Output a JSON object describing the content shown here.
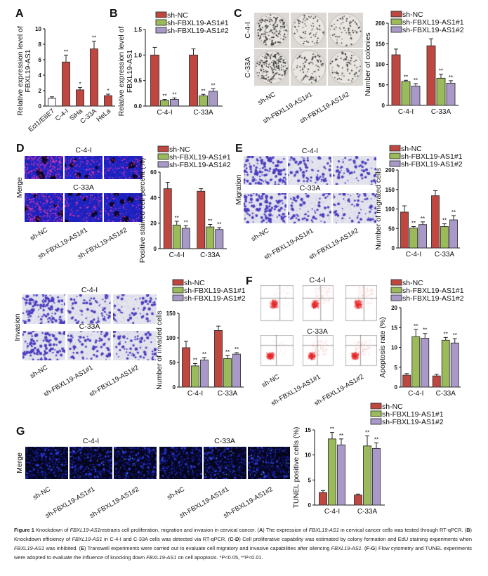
{
  "panels": {
    "letters": [
      "A",
      "B",
      "C",
      "D",
      "E",
      "F",
      "G"
    ],
    "groups": [
      "sh-NC",
      "sh-FBXL19-AS1#1",
      "sh-FBXL19-AS1#2"
    ],
    "cell_lines": [
      "C-4-I",
      "C-33A"
    ],
    "merge": "Merge",
    "migration": "Migration",
    "invasion": "Invasion"
  },
  "colors": {
    "sh-NC": "#c0473f",
    "sh-FBXL19-AS1#1": "#9bbb5a",
    "sh-FBXL19-AS1#2": "#a899c8"
  },
  "chart_data": [
    {
      "id": "A",
      "type": "bar",
      "categories": [
        "Ect1/E6E7",
        "C-4-I",
        "SiHa",
        "C-33A",
        "HeLa"
      ],
      "values": [
        1.0,
        5.7,
        2.1,
        7.4,
        1.35
      ],
      "errors": [
        0.2,
        0.9,
        0.3,
        1.0,
        0.2
      ],
      "significance": [
        "",
        "**",
        "*",
        "**",
        "*"
      ],
      "bar_colors": [
        "#ffffff",
        "#c0473f",
        "#c0473f",
        "#c0473f",
        "#c0473f"
      ],
      "ylabel": [
        "Relative expression level of",
        "FBXL19-AS1"
      ],
      "ylim": [
        0,
        10
      ],
      "yticks": [
        "0",
        "2",
        "4",
        "6",
        "8",
        "10"
      ],
      "grid": false
    },
    {
      "id": "B",
      "type": "bar",
      "categories": [
        "C-4-I",
        "C-33A"
      ],
      "series": [
        {
          "name": "sh-NC",
          "color": "#c0473f",
          "values": [
            1.0,
            1.0
          ],
          "errors": [
            0.15,
            0.12
          ],
          "significance": [
            "",
            ""
          ]
        },
        {
          "name": "sh-FBXL19-AS1#1",
          "color": "#9bbb5a",
          "values": [
            0.11,
            0.2
          ],
          "errors": [
            0.02,
            0.03
          ],
          "significance": [
            "**",
            "**"
          ]
        },
        {
          "name": "sh-FBXL19-AS1#2",
          "color": "#a899c8",
          "values": [
            0.13,
            0.29
          ],
          "errors": [
            0.03,
            0.05
          ],
          "significance": [
            "**",
            "**"
          ]
        }
      ],
      "ylabel": [
        "Relative expression level of",
        "FBXL19-AS1"
      ],
      "ylim": [
        0,
        1.5
      ],
      "yticks": [
        "0.0",
        "0.5",
        "1.0",
        "1.5"
      ],
      "legend": "top",
      "grid": false
    },
    {
      "id": "C",
      "type": "bar",
      "categories": [
        "C-4-I",
        "C-33A"
      ],
      "series": [
        {
          "name": "sh-NC",
          "color": "#c0473f",
          "values": [
            123,
            145
          ],
          "errors": [
            14,
            17
          ],
          "significance": [
            "",
            ""
          ]
        },
        {
          "name": "sh-FBXL19-AS1#1",
          "color": "#9bbb5a",
          "values": [
            58,
            66
          ],
          "errors": [
            3,
            10
          ],
          "significance": [
            "**",
            "**"
          ]
        },
        {
          "name": "sh-FBXL19-AS1#2",
          "color": "#a899c8",
          "values": [
            47,
            54
          ],
          "errors": [
            6,
            6
          ],
          "significance": [
            "**",
            "**"
          ]
        }
      ],
      "ylabel": [
        "Number of colonies"
      ],
      "ylim": [
        0,
        200
      ],
      "yticks": [
        "0",
        "50",
        "100",
        "150",
        "200"
      ],
      "legend": "top",
      "grid": false
    },
    {
      "id": "D",
      "type": "bar",
      "categories": [
        "C-4-I",
        "C-33A"
      ],
      "series": [
        {
          "name": "sh-NC",
          "color": "#c0473f",
          "values": [
            47,
            45
          ],
          "errors": [
            5,
            2
          ],
          "significance": [
            "",
            ""
          ]
        },
        {
          "name": "sh-FBXL19-AS1#1",
          "color": "#9bbb5a",
          "values": [
            18.5,
            17
          ],
          "errors": [
            3,
            2
          ],
          "significance": [
            "**",
            "**"
          ]
        },
        {
          "name": "sh-FBXL19-AS1#2",
          "color": "#a899c8",
          "values": [
            16,
            15
          ],
          "errors": [
            2,
            1.5
          ],
          "significance": [
            "**",
            "**"
          ]
        }
      ],
      "ylabel": [
        "Positive stained cell percent (%)"
      ],
      "ylim": [
        0,
        60
      ],
      "yticks": [
        "0",
        "20",
        "40",
        "60"
      ],
      "legend": "top",
      "grid": false
    },
    {
      "id": "E",
      "type": "bar",
      "categories": [
        "C-4-I",
        "C-33A"
      ],
      "series": [
        {
          "name": "sh-NC",
          "color": "#c0473f",
          "values": [
            92,
            134
          ],
          "errors": [
            16,
            13
          ],
          "significance": [
            "",
            ""
          ]
        },
        {
          "name": "sh-FBXL19-AS1#1",
          "color": "#9bbb5a",
          "values": [
            51,
            55
          ],
          "errors": [
            4,
            7
          ],
          "significance": [
            "**",
            "**"
          ]
        },
        {
          "name": "sh-FBXL19-AS1#2",
          "color": "#a899c8",
          "values": [
            60,
            72
          ],
          "errors": [
            7,
            11
          ],
          "significance": [
            "**",
            "**"
          ]
        }
      ],
      "ylabel": [
        "Number of migrated cells"
      ],
      "ylim": [
        0,
        200
      ],
      "yticks": [
        "0",
        "50",
        "100",
        "150",
        "200"
      ],
      "legend": "top",
      "grid": false
    },
    {
      "id": "Inv",
      "type": "bar",
      "categories": [
        "C-4-I",
        "C-33A"
      ],
      "series": [
        {
          "name": "sh-NC",
          "color": "#c0473f",
          "values": [
            80,
            115
          ],
          "errors": [
            13,
            9
          ],
          "significance": [
            "",
            ""
          ]
        },
        {
          "name": "sh-FBXL19-AS1#1",
          "color": "#9bbb5a",
          "values": [
            43,
            58
          ],
          "errors": [
            5,
            6
          ],
          "significance": [
            "**",
            "**"
          ]
        },
        {
          "name": "sh-FBXL19-AS1#2",
          "color": "#a899c8",
          "values": [
            55,
            67
          ],
          "errors": [
            5,
            3
          ],
          "significance": [
            "**",
            "**"
          ]
        }
      ],
      "ylabel": [
        "Number of invaded cells"
      ],
      "ylim": [
        0,
        150
      ],
      "yticks": [
        "0",
        "50",
        "100",
        "150"
      ],
      "legend": "top",
      "grid": false
    },
    {
      "id": "F",
      "type": "bar",
      "categories": [
        "C-4-I",
        "C-33A"
      ],
      "series": [
        {
          "name": "sh-NC",
          "color": "#c0473f",
          "values": [
            3.0,
            2.8
          ],
          "errors": [
            0.4,
            0.4
          ],
          "significance": [
            "",
            ""
          ]
        },
        {
          "name": "sh-FBXL19-AS1#1",
          "color": "#9bbb5a",
          "values": [
            12.7,
            11.8
          ],
          "errors": [
            1.8,
            0.7
          ],
          "significance": [
            "**",
            "**"
          ]
        },
        {
          "name": "sh-FBXL19-AS1#2",
          "color": "#a899c8",
          "values": [
            12.3,
            11.1
          ],
          "errors": [
            1.2,
            1.1
          ],
          "significance": [
            "**",
            "**"
          ]
        }
      ],
      "ylabel": [
        "Apoptosis rate (%)"
      ],
      "ylim": [
        0,
        20
      ],
      "yticks": [
        "0",
        "5",
        "10",
        "15",
        "20"
      ],
      "legend": "top",
      "grid": false
    },
    {
      "id": "G",
      "type": "bar",
      "categories": [
        "C-4-I",
        "C-33A"
      ],
      "series": [
        {
          "name": "sh-NC",
          "color": "#c0473f",
          "values": [
            2.5,
            2.0
          ],
          "errors": [
            0.4,
            0.2
          ],
          "significance": [
            "",
            ""
          ]
        },
        {
          "name": "sh-FBXL19-AS1#1",
          "color": "#9bbb5a",
          "values": [
            13.2,
            11.8
          ],
          "errors": [
            1.3,
            2.0
          ],
          "significance": [
            "**",
            "**"
          ]
        },
        {
          "name": "sh-FBXL19-AS1#2",
          "color": "#a899c8",
          "values": [
            12.0,
            11.3
          ],
          "errors": [
            1.2,
            1.1
          ],
          "significance": [
            "**",
            "**"
          ]
        }
      ],
      "ylabel": [
        "TUNEL positive cells (%)"
      ],
      "ylim": [
        0,
        15
      ],
      "yticks": [
        "0",
        "5",
        "10",
        "15"
      ],
      "legend": "top",
      "grid": false
    }
  ],
  "caption": [
    {
      "t": "Figure 1",
      "s": "b"
    },
    {
      "t": " Knockdown of ",
      "s": ""
    },
    {
      "t": "FBXL19-AS1",
      "s": "i"
    },
    {
      "t": "restrains cell proliferation, migration and invasion in cervical cancer. (",
      "s": ""
    },
    {
      "t": "A",
      "s": "b"
    },
    {
      "t": ") The expression of ",
      "s": ""
    },
    {
      "t": "FBXL19-AS1",
      "s": "i"
    },
    {
      "t": " in cervical cancer cells was tested through RT-qPCR. (",
      "s": ""
    },
    {
      "t": "B",
      "s": "b"
    },
    {
      "t": ") Knockdown efficiency of ",
      "s": ""
    },
    {
      "t": "FBXL19-AS1",
      "s": "i"
    },
    {
      "t": " in C-4-I and C-33A cells was detected via RT-qPCR. (",
      "s": ""
    },
    {
      "t": "C-D",
      "s": "b"
    },
    {
      "t": ") Cell proliferative capability was estimated by colony formation and EdU staining experiments when ",
      "s": ""
    },
    {
      "t": "FBXL19-AS1",
      "s": "i"
    },
    {
      "t": " was inhibited. (",
      "s": ""
    },
    {
      "t": "E",
      "s": "b"
    },
    {
      "t": ") Transwell experiments were carried out to evaluate cell migratory and invasive capabilities after silencing ",
      "s": ""
    },
    {
      "t": "FBXL19-AS1",
      "s": "i"
    },
    {
      "t": ". (",
      "s": ""
    },
    {
      "t": "F-G",
      "s": "b"
    },
    {
      "t": ") Flow cytometry and TUNEL experiments were adopted to evaluate the influence of knocking down ",
      "s": ""
    },
    {
      "t": "FBXL19-AS1",
      "s": "i"
    },
    {
      "t": " on cell apoptosis. *P<0.05, **P<0.01.",
      "s": ""
    }
  ]
}
